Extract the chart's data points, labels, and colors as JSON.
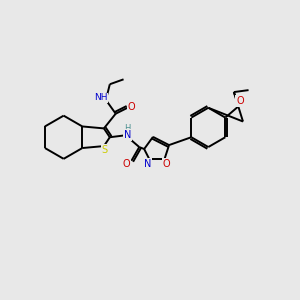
{
  "bg_color": "#e8e8e8",
  "atom_colors": {
    "C": "#000000",
    "N": "#0000cc",
    "O": "#cc0000",
    "S": "#cccc00",
    "H_teal": "#4a9090"
  },
  "line_color": "#000000",
  "line_width": 1.4,
  "figsize": [
    3.0,
    3.0
  ],
  "dpi": 100
}
